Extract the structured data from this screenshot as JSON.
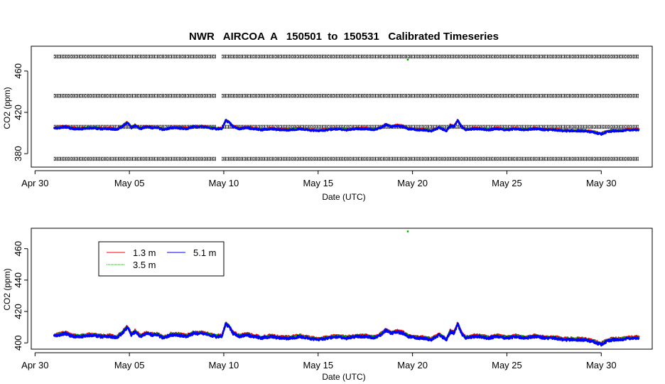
{
  "title": "NWR   AIRCOA  A   150501  to  150531   Calibrated Timeseries",
  "colors": {
    "h13": "#ff0000",
    "h35": "#00a000",
    "h51": "#0000ff",
    "calib": "#000000"
  },
  "chart_data": [
    {
      "type": "scatter",
      "panel": "top",
      "title": "NWR   AIRCOA  A   150501  to  150531   Calibrated Timeseries",
      "xlabel": "Date (UTC)",
      "ylabel": "CO2 (ppm)",
      "xlim": [
        -0.2,
        32.7
      ],
      "ylim": [
        367,
        484
      ],
      "x_ticks": [
        {
          "value": 0,
          "label": "Apr 30"
        },
        {
          "value": 5,
          "label": "May 05"
        },
        {
          "value": 10,
          "label": "May 10"
        },
        {
          "value": 15,
          "label": "May 15"
        },
        {
          "value": 20,
          "label": "May 20"
        },
        {
          "value": 25,
          "label": "May 25"
        },
        {
          "value": 30,
          "label": "May 30"
        }
      ],
      "y_ticks": [
        {
          "value": 380,
          "label": "380"
        },
        {
          "value": 420,
          "label": "420"
        },
        {
          "value": 460,
          "label": "460"
        }
      ],
      "calibration_levels": [
        474,
        436,
        406,
        375
      ],
      "calibration_x_ranges": [
        [
          1.0,
          9.6
        ],
        [
          9.9,
          32.0
        ]
      ],
      "grid": false
    },
    {
      "type": "line",
      "panel": "bottom",
      "xlabel": "Date (UTC)",
      "ylabel": "CO2 (ppm)",
      "xlim": [
        -0.2,
        32.7
      ],
      "ylim": [
        396,
        473
      ],
      "x_ticks": [
        {
          "value": 0,
          "label": "Apr 30"
        },
        {
          "value": 5,
          "label": "May 05"
        },
        {
          "value": 10,
          "label": "May 10"
        },
        {
          "value": 15,
          "label": "May 15"
        },
        {
          "value": 20,
          "label": "May 20"
        },
        {
          "value": 25,
          "label": "May 25"
        },
        {
          "value": 30,
          "label": "May 30"
        }
      ],
      "y_ticks": [
        {
          "value": 400,
          "label": "400"
        },
        {
          "value": 420,
          "label": "420"
        },
        {
          "value": 440,
          "label": "440"
        },
        {
          "value": 460,
          "label": "460"
        }
      ],
      "legend": {
        "placement": "top-left",
        "entries": [
          "1.3 m",
          "3.5 m",
          "5.1 m"
        ]
      },
      "grid": false
    }
  ],
  "series": [
    {
      "name": "1.3 m",
      "color": "#ff0000",
      "width": 2.2
    },
    {
      "name": "3.5 m",
      "color": "#00a000",
      "width": 2.2
    },
    {
      "name": "5.1 m",
      "color": "#0000ff",
      "width": 2.6
    }
  ],
  "base_profile": {
    "x": [
      1.0,
      1.3,
      1.6,
      2.0,
      2.5,
      3.0,
      3.5,
      4.0,
      4.3,
      4.6,
      4.9,
      5.1,
      5.3,
      5.6,
      5.9,
      6.2,
      6.5,
      6.8,
      7.2,
      7.6,
      8.0,
      8.4,
      8.8,
      9.2,
      9.6,
      9.9,
      10.1,
      10.3,
      10.5,
      10.8,
      11.2,
      11.6,
      12.0,
      12.5,
      13.0,
      13.5,
      14.0,
      14.5,
      15.0,
      15.5,
      16.0,
      16.5,
      17.0,
      17.5,
      18.0,
      18.3,
      18.6,
      18.9,
      19.2,
      19.5,
      19.8,
      20.2,
      20.6,
      21.0,
      21.4,
      21.8,
      22.0,
      22.2,
      22.4,
      22.6,
      22.8,
      23.2,
      23.6,
      24.0,
      24.5,
      25.0,
      25.5,
      26.0,
      26.5,
      27.0,
      27.5,
      28.0,
      28.5,
      29.0,
      29.5,
      30.0,
      30.3,
      30.6,
      31.0,
      31.5,
      32.0
    ],
    "y": [
      404,
      405,
      406,
      404,
      404,
      405,
      404,
      404,
      403,
      406,
      410,
      405,
      407,
      404,
      406,
      405,
      405,
      403,
      405,
      405,
      404,
      406,
      406,
      405,
      404,
      404,
      412,
      410,
      406,
      404,
      405,
      404,
      403,
      404,
      403,
      403,
      404,
      403,
      402,
      403,
      404,
      403,
      404,
      404,
      403,
      405,
      408,
      406,
      407,
      406,
      404,
      403,
      403,
      402,
      405,
      402,
      407,
      406,
      412,
      406,
      403,
      404,
      404,
      403,
      404,
      403,
      404,
      403,
      404,
      403,
      403,
      402,
      402,
      402,
      401,
      399,
      401,
      402,
      402,
      403,
      403
    ]
  },
  "outliers": [
    {
      "series": "3.5 m",
      "x": 19.75,
      "y": 471
    }
  ]
}
